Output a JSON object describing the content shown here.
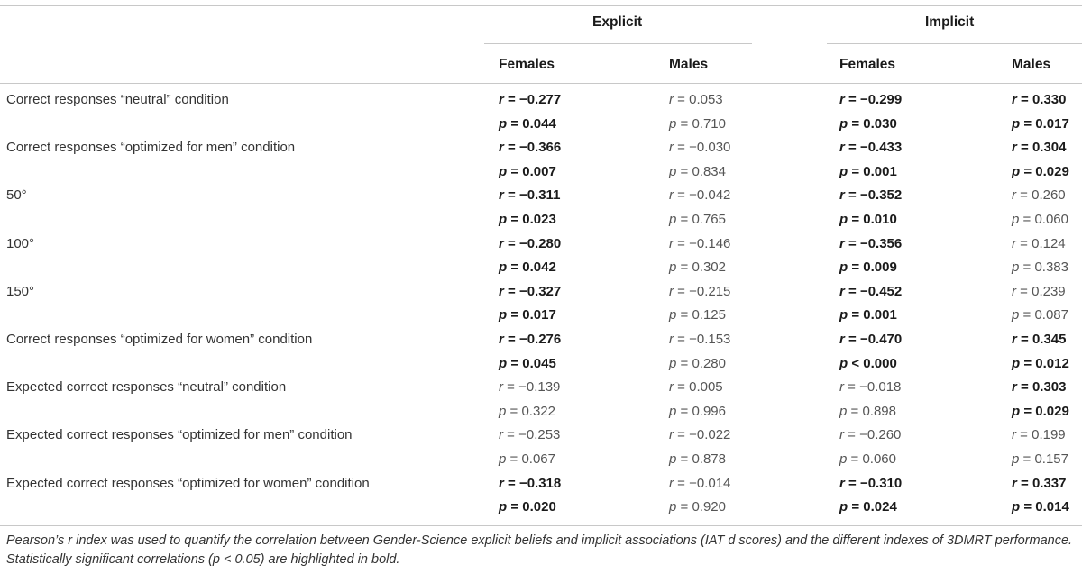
{
  "header": {
    "groups": [
      "Explicit",
      "Implicit"
    ],
    "subheaders": [
      "Females",
      "Males",
      "Females",
      "Males"
    ]
  },
  "rows": [
    {
      "label": "Correct responses “neutral” condition",
      "r": [
        {
          "sym": "r",
          "val": "= −0.277",
          "sig": true
        },
        {
          "sym": "r",
          "val": "= 0.053",
          "sig": false
        },
        {
          "sym": "r",
          "val": "= −0.299",
          "sig": true
        },
        {
          "sym": "r",
          "val": "= 0.330",
          "sig": true
        }
      ],
      "p": [
        {
          "sym": "p",
          "val": "= 0.044",
          "sig": true
        },
        {
          "sym": "p",
          "val": "= 0.710",
          "sig": false
        },
        {
          "sym": "p",
          "val": "= 0.030",
          "sig": true
        },
        {
          "sym": "p",
          "val": "= 0.017",
          "sig": true
        }
      ]
    },
    {
      "label": "Correct responses “optimized for men” condition",
      "r": [
        {
          "sym": "r",
          "val": "= −0.366",
          "sig": true
        },
        {
          "sym": "r",
          "val": "= −0.030",
          "sig": false
        },
        {
          "sym": "r",
          "val": "= −0.433",
          "sig": true
        },
        {
          "sym": "r",
          "val": "= 0.304",
          "sig": true
        }
      ],
      "p": [
        {
          "sym": "p",
          "val": "= 0.007",
          "sig": true
        },
        {
          "sym": "p",
          "val": "= 0.834",
          "sig": false
        },
        {
          "sym": "p",
          "val": "= 0.001",
          "sig": true
        },
        {
          "sym": "p",
          "val": "= 0.029",
          "sig": true
        }
      ]
    },
    {
      "label": "50°",
      "r": [
        {
          "sym": "r",
          "val": "= −0.311",
          "sig": true
        },
        {
          "sym": "r",
          "val": "= −0.042",
          "sig": false
        },
        {
          "sym": "r",
          "val": "= −0.352",
          "sig": true
        },
        {
          "sym": "r",
          "val": "= 0.260",
          "sig": false
        }
      ],
      "p": [
        {
          "sym": "p",
          "val": "= 0.023",
          "sig": true
        },
        {
          "sym": "p",
          "val": "= 0.765",
          "sig": false
        },
        {
          "sym": "p",
          "val": "= 0.010",
          "sig": true
        },
        {
          "sym": "p",
          "val": "= 0.060",
          "sig": false
        }
      ]
    },
    {
      "label": "100°",
      "r": [
        {
          "sym": "r",
          "val": "= −0.280",
          "sig": true
        },
        {
          "sym": "r",
          "val": "= −0.146",
          "sig": false
        },
        {
          "sym": "r",
          "val": "= −0.356",
          "sig": true
        },
        {
          "sym": "r",
          "val": "= 0.124",
          "sig": false
        }
      ],
      "p": [
        {
          "sym": "p",
          "val": "= 0.042",
          "sig": true
        },
        {
          "sym": "p",
          "val": "= 0.302",
          "sig": false
        },
        {
          "sym": "p",
          "val": "= 0.009",
          "sig": true
        },
        {
          "sym": "p",
          "val": "= 0.383",
          "sig": false
        }
      ]
    },
    {
      "label": "150°",
      "r": [
        {
          "sym": "r",
          "val": "= −0.327",
          "sig": true
        },
        {
          "sym": "r",
          "val": "= −0.215",
          "sig": false
        },
        {
          "sym": "r",
          "val": "= −0.452",
          "sig": true
        },
        {
          "sym": "r",
          "val": "= 0.239",
          "sig": false
        }
      ],
      "p": [
        {
          "sym": "p",
          "val": "= 0.017",
          "sig": true
        },
        {
          "sym": "p",
          "val": "= 0.125",
          "sig": false
        },
        {
          "sym": "p",
          "val": "= 0.001",
          "sig": true
        },
        {
          "sym": "p",
          "val": "= 0.087",
          "sig": false
        }
      ]
    },
    {
      "label": "Correct responses “optimized for women” condition",
      "r": [
        {
          "sym": "r",
          "val": "= −0.276",
          "sig": true
        },
        {
          "sym": "r",
          "val": "= −0.153",
          "sig": false
        },
        {
          "sym": "r",
          "val": "= −0.470",
          "sig": true
        },
        {
          "sym": "r",
          "val": "= 0.345",
          "sig": true
        }
      ],
      "p": [
        {
          "sym": "p",
          "val": "= 0.045",
          "sig": true
        },
        {
          "sym": "p",
          "val": "= 0.280",
          "sig": false
        },
        {
          "sym": "p",
          "val": "< 0.000",
          "sig": true
        },
        {
          "sym": "p",
          "val": "= 0.012",
          "sig": true
        }
      ]
    },
    {
      "label": "Expected correct responses “neutral” condition",
      "r": [
        {
          "sym": "r",
          "val": "= −0.139",
          "sig": false
        },
        {
          "sym": "r",
          "val": "= 0.005",
          "sig": false
        },
        {
          "sym": "r",
          "val": "= −0.018",
          "sig": false
        },
        {
          "sym": "r",
          "val": "= 0.303",
          "sig": true
        }
      ],
      "p": [
        {
          "sym": "p",
          "val": "= 0.322",
          "sig": false
        },
        {
          "sym": "p",
          "val": "= 0.996",
          "sig": false
        },
        {
          "sym": "p",
          "val": "= 0.898",
          "sig": false
        },
        {
          "sym": "p",
          "val": "= 0.029",
          "sig": true
        }
      ]
    },
    {
      "label": "Expected correct responses “optimized for men” condition",
      "r": [
        {
          "sym": "r",
          "val": "= −0.253",
          "sig": false
        },
        {
          "sym": "r",
          "val": "= −0.022",
          "sig": false
        },
        {
          "sym": "r",
          "val": "= −0.260",
          "sig": false
        },
        {
          "sym": "r",
          "val": "= 0.199",
          "sig": false
        }
      ],
      "p": [
        {
          "sym": "p",
          "val": "= 0.067",
          "sig": false
        },
        {
          "sym": "p",
          "val": "= 0.878",
          "sig": false
        },
        {
          "sym": "p",
          "val": "= 0.060",
          "sig": false
        },
        {
          "sym": "p",
          "val": "= 0.157",
          "sig": false
        }
      ]
    },
    {
      "label": "Expected correct responses “optimized for women” condition",
      "r": [
        {
          "sym": "r",
          "val": "= −0.318",
          "sig": true
        },
        {
          "sym": "r",
          "val": "= −0.014",
          "sig": false
        },
        {
          "sym": "r",
          "val": "= −0.310",
          "sig": true
        },
        {
          "sym": "r",
          "val": "= 0.337",
          "sig": true
        }
      ],
      "p": [
        {
          "sym": "p",
          "val": "= 0.020",
          "sig": true
        },
        {
          "sym": "p",
          "val": "= 0.920",
          "sig": false
        },
        {
          "sym": "p",
          "val": "= 0.024",
          "sig": true
        },
        {
          "sym": "p",
          "val": "= 0.014",
          "sig": true
        }
      ]
    }
  ],
  "footnote": "Pearson’s r index was used to quantify the correlation between Gender-Science explicit beliefs and implicit associations (IAT d scores) and the different indexes of 3DMRT performance. Statistically significant correlations (p < 0.05) are highlighted in bold."
}
